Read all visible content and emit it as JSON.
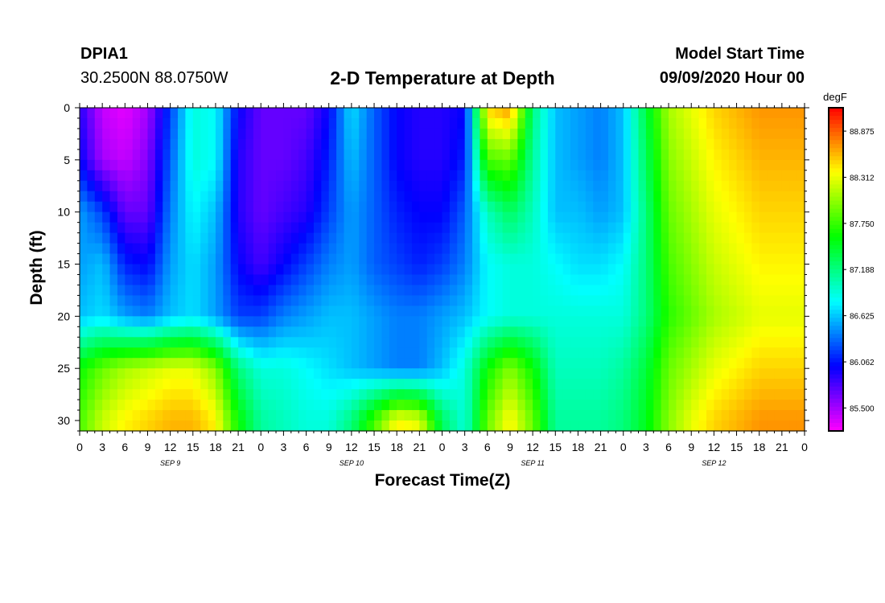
{
  "header": {
    "station_id": "DPIA1",
    "station_coords": "30.2500N 88.0750W",
    "title": "2-D Temperature at Depth",
    "model_label": "Model Start Time",
    "model_time": "09/09/2020 Hour 00"
  },
  "chart_data": {
    "type": "heatmap",
    "title": "2-D Temperature at Depth",
    "xlabel": "Forecast Time(Z)",
    "ylabel": "Depth (ft)",
    "x_unit": "forecast hour",
    "xlim": [
      0,
      96
    ],
    "ylim": [
      31,
      0
    ],
    "x_tick_labels": [
      "0",
      "3",
      "6",
      "9",
      "12",
      "15",
      "18",
      "21",
      "0",
      "3",
      "6",
      "9",
      "12",
      "15",
      "18",
      "21",
      "0",
      "3",
      "6",
      "9",
      "12",
      "15",
      "18",
      "21",
      "0",
      "3",
      "6",
      "9",
      "12",
      "15",
      "18",
      "21",
      "0"
    ],
    "day_labels": [
      "SEP 9",
      "SEP 10",
      "SEP 11",
      "SEP 12"
    ],
    "y_ticks": [
      0,
      5,
      10,
      15,
      20,
      25,
      30
    ],
    "colorbar": {
      "unit": "degF",
      "range": [
        85.22,
        89.16
      ],
      "tick_values": [
        88.875,
        88.312,
        87.75,
        87.188,
        86.625,
        86.062,
        85.5
      ],
      "tick_labels": [
        "88.875",
        "88.312",
        "87.750",
        "87.188",
        "86.625",
        "86.062",
        "85.500"
      ]
    },
    "x_hours": [
      0,
      3,
      6,
      9,
      12,
      15,
      18,
      21,
      24,
      27,
      30,
      33,
      36,
      39,
      42,
      45,
      48,
      51,
      54,
      57,
      60,
      63,
      66,
      69,
      72,
      75,
      78,
      81,
      84,
      87,
      90,
      93,
      96
    ],
    "depth_levels": [
      0,
      5,
      10,
      15,
      20,
      25,
      30
    ],
    "temperature_degF": [
      [
        85.9,
        85.4,
        85.3,
        85.5,
        86.2,
        86.9,
        86.8,
        86.0,
        85.7,
        85.7,
        85.7,
        86.0,
        86.7,
        86.3,
        86.0,
        85.9,
        85.9,
        86.0,
        88.5,
        88.7,
        87.2,
        86.6,
        86.5,
        86.4,
        86.6,
        87.4,
        88.1,
        88.3,
        88.5,
        88.6,
        88.7,
        88.7,
        88.7
      ],
      [
        86.0,
        85.5,
        85.4,
        85.6,
        86.3,
        86.9,
        86.8,
        85.9,
        85.7,
        85.7,
        85.8,
        86.1,
        86.6,
        86.3,
        86.0,
        85.9,
        85.9,
        86.1,
        87.8,
        87.9,
        87.1,
        86.6,
        86.5,
        86.4,
        86.6,
        87.3,
        88.0,
        88.2,
        88.4,
        88.5,
        88.6,
        88.6,
        88.6
      ],
      [
        86.5,
        86.2,
        85.7,
        85.7,
        86.4,
        86.8,
        86.6,
        85.9,
        85.7,
        85.8,
        85.9,
        86.2,
        86.5,
        86.3,
        86.1,
        86.0,
        86.0,
        86.3,
        87.0,
        87.3,
        87.0,
        86.6,
        86.6,
        86.5,
        86.6,
        87.2,
        87.9,
        88.1,
        88.3,
        88.4,
        88.5,
        88.5,
        88.5
      ],
      [
        86.5,
        86.6,
        86.1,
        86.0,
        86.5,
        86.7,
        86.5,
        86.0,
        85.8,
        86.0,
        86.2,
        86.4,
        86.5,
        86.3,
        86.2,
        86.1,
        86.2,
        86.4,
        86.8,
        86.9,
        86.9,
        86.8,
        86.7,
        86.7,
        86.8,
        87.2,
        87.8,
        88.0,
        88.2,
        88.3,
        88.4,
        88.4,
        88.4
      ],
      [
        86.6,
        86.7,
        86.5,
        86.4,
        86.6,
        86.7,
        86.5,
        86.2,
        86.2,
        86.4,
        86.5,
        86.6,
        86.6,
        86.5,
        86.4,
        86.4,
        86.5,
        86.6,
        86.8,
        86.9,
        86.9,
        86.9,
        86.9,
        86.9,
        86.9,
        87.2,
        87.7,
        87.9,
        88.1,
        88.2,
        88.3,
        88.3,
        88.3
      ],
      [
        87.6,
        87.9,
        88.1,
        88.2,
        88.3,
        88.3,
        88.0,
        87.2,
        86.9,
        86.9,
        86.8,
        86.7,
        86.6,
        86.5,
        86.4,
        86.4,
        86.6,
        86.9,
        87.6,
        88.0,
        87.6,
        87.0,
        87.0,
        87.0,
        87.1,
        87.4,
        87.9,
        88.1,
        88.3,
        88.4,
        88.5,
        88.5,
        88.5
      ],
      [
        87.8,
        88.2,
        88.4,
        88.5,
        88.6,
        88.6,
        88.4,
        87.6,
        87.1,
        87.0,
        86.9,
        86.9,
        87.2,
        87.8,
        88.4,
        88.3,
        87.3,
        86.9,
        87.9,
        88.4,
        87.9,
        87.1,
        87.1,
        87.1,
        87.2,
        87.5,
        88.0,
        88.3,
        88.5,
        88.6,
        88.7,
        88.7,
        88.7
      ]
    ]
  }
}
